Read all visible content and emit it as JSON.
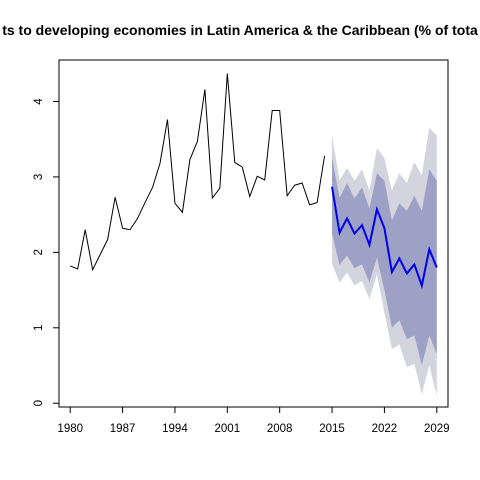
{
  "chart_data": {
    "type": "line",
    "title": "ts to developing economies in Latin America & the Caribbean (% of tota",
    "xlabel": "",
    "ylabel": "",
    "xlim": [
      1978.5,
      2030.5
    ],
    "ylim": [
      -0.05,
      4.55
    ],
    "x_ticks": [
      1980,
      1987,
      1994,
      2001,
      2008,
      2015,
      2022,
      2029
    ],
    "y_ticks": [
      0,
      1,
      2,
      3,
      4
    ],
    "grid": false,
    "colors": {
      "history": "#000000",
      "forecast": "#0000ee",
      "band_80": "#9da1c6",
      "band_95": "#d3d4de"
    },
    "history": {
      "x": [
        1980,
        1981,
        1982,
        1983,
        1984,
        1985,
        1986,
        1987,
        1988,
        1989,
        1990,
        1991,
        1992,
        1993,
        1994,
        1995,
        1996,
        1997,
        1998,
        1999,
        2000,
        2001,
        2002,
        2003,
        2004,
        2005,
        2006,
        2007,
        2008,
        2009,
        2010,
        2011,
        2012,
        2013,
        2014
      ],
      "y": [
        1.82,
        1.78,
        2.3,
        1.77,
        1.97,
        2.17,
        2.73,
        2.32,
        2.3,
        2.45,
        2.66,
        2.86,
        3.18,
        3.76,
        2.65,
        2.53,
        3.23,
        3.47,
        4.16,
        2.72,
        2.85,
        4.37,
        3.19,
        3.13,
        2.74,
        3.01,
        2.96,
        3.88,
        3.88,
        2.75,
        2.89,
        2.92,
        2.63,
        2.66,
        3.28
      ]
    },
    "forecast": {
      "x": [
        2015,
        2016,
        2017,
        2018,
        2019,
        2020,
        2021,
        2022,
        2023,
        2024,
        2025,
        2026,
        2027,
        2028,
        2029
      ],
      "mean": [
        2.87,
        2.26,
        2.45,
        2.25,
        2.36,
        2.1,
        2.57,
        2.32,
        1.74,
        1.92,
        1.72,
        1.84,
        1.56,
        2.04,
        1.8
      ],
      "lo80": [
        2.25,
        1.83,
        1.96,
        1.79,
        1.84,
        1.6,
        1.93,
        1.5,
        1.0,
        1.1,
        0.85,
        0.9,
        0.5,
        0.9,
        0.65
      ],
      "hi80": [
        3.25,
        2.72,
        2.92,
        2.71,
        2.86,
        2.58,
        3.05,
        2.95,
        2.42,
        2.65,
        2.55,
        2.75,
        2.55,
        3.1,
        2.95
      ],
      "lo95": [
        1.85,
        1.6,
        1.73,
        1.56,
        1.62,
        1.38,
        1.71,
        1.2,
        0.72,
        0.78,
        0.48,
        0.52,
        0.12,
        0.5,
        0.1
      ],
      "hi95": [
        3.55,
        2.95,
        3.12,
        2.95,
        3.1,
        2.82,
        3.38,
        3.25,
        2.82,
        3.05,
        2.92,
        3.2,
        3.02,
        3.65,
        3.55
      ]
    }
  }
}
